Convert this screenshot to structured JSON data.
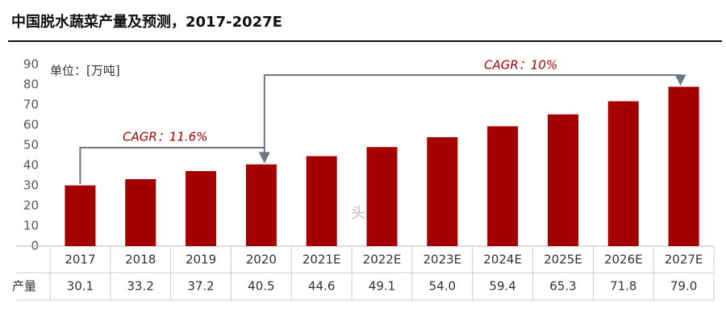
{
  "chart_data": {
    "type": "bar",
    "title": "中国脱水蔬菜产量及预测，2017-2027E",
    "unit_label": "单位：[万吨]",
    "categories": [
      "2017",
      "2018",
      "2019",
      "2020",
      "2021E",
      "2022E",
      "2023E",
      "2024E",
      "2025E",
      "2026E",
      "2027E"
    ],
    "values": [
      30.1,
      33.2,
      37.2,
      40.5,
      44.6,
      49.1,
      54.0,
      59.4,
      65.3,
      71.8,
      79.0
    ],
    "value_labels": [
      "30.1",
      "33.2",
      "37.2",
      "40.5",
      "44.6",
      "49.1",
      "54.0",
      "59.4",
      "65.3",
      "71.8",
      "79.0"
    ],
    "table_row_label": "产量",
    "color": "#a50000",
    "ylim": [
      0,
      90
    ],
    "yticks": [
      0,
      10,
      20,
      30,
      40,
      50,
      60,
      70,
      80,
      90
    ],
    "grid": false,
    "annotations": [
      "CAGR：11.6%",
      "CAGR：10%"
    ],
    "watermark": "头豹"
  }
}
